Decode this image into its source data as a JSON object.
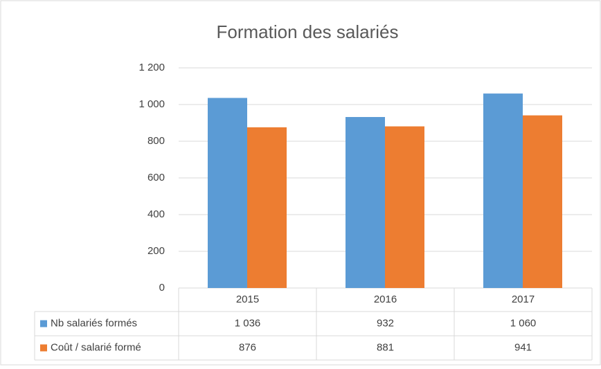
{
  "chart_data": {
    "type": "bar",
    "title": "Formation des salariés",
    "categories": [
      "2015",
      "2016",
      "2017"
    ],
    "series": [
      {
        "name": "Nb salariés formés",
        "color": "#5b9bd5",
        "values": [
          1036,
          932,
          1060
        ],
        "value_labels": [
          "1 036",
          "932",
          "1 060"
        ]
      },
      {
        "name": "Coût / salarié formé",
        "color": "#ed7d31",
        "values": [
          876,
          881,
          941
        ],
        "value_labels": [
          "876",
          "881",
          "941"
        ]
      }
    ],
    "ylim": [
      0,
      1200
    ],
    "yticks": [
      0,
      200,
      400,
      600,
      800,
      {
        "value": 1000,
        "label": "1 000"
      },
      {
        "value": 1200,
        "label": "1 200"
      }
    ],
    "grid": true
  }
}
